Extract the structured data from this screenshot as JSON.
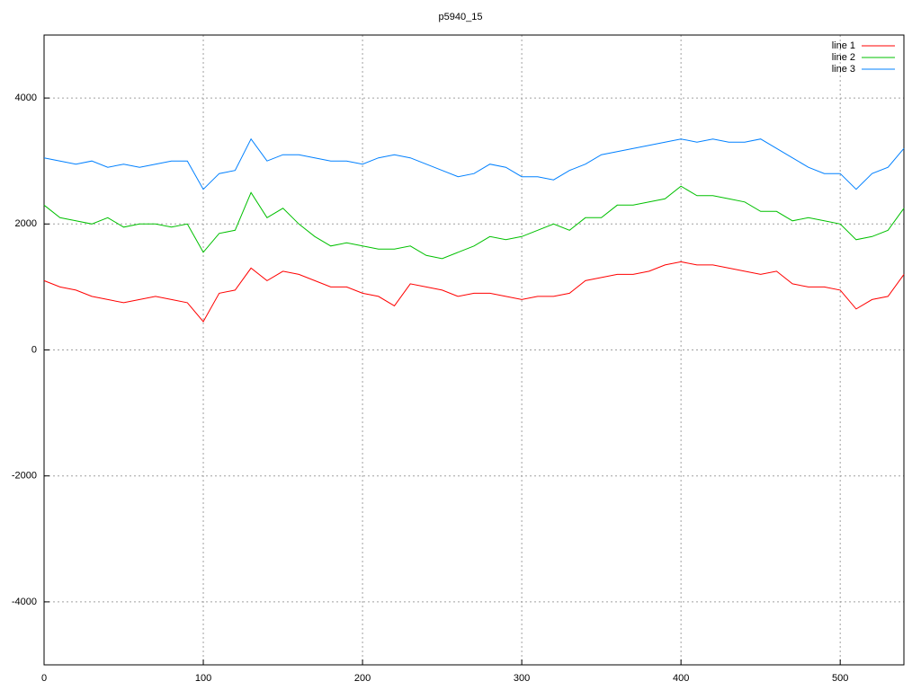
{
  "chart_data": {
    "type": "line",
    "title": "p5940_15",
    "x": [
      0,
      10,
      20,
      30,
      40,
      50,
      60,
      70,
      80,
      90,
      100,
      110,
      120,
      130,
      140,
      150,
      160,
      170,
      180,
      190,
      200,
      210,
      220,
      230,
      240,
      250,
      260,
      270,
      280,
      290,
      300,
      310,
      320,
      330,
      340,
      350,
      360,
      370,
      380,
      390,
      400,
      410,
      420,
      430,
      440,
      450,
      460,
      470,
      480,
      490,
      500,
      510,
      520,
      530,
      540
    ],
    "series": [
      {
        "name": "line 1",
        "color": "#ff0000",
        "values": [
          1100,
          1000,
          950,
          850,
          800,
          750,
          800,
          850,
          800,
          750,
          450,
          900,
          950,
          1300,
          1100,
          1250,
          1200,
          1100,
          1000,
          1000,
          900,
          850,
          700,
          1050,
          1000,
          950,
          850,
          900,
          900,
          850,
          800,
          850,
          850,
          900,
          1100,
          1150,
          1200,
          1200,
          1250,
          1350,
          1400,
          1350,
          1350,
          1300,
          1250,
          1200,
          1250,
          1050,
          1000,
          1000,
          950,
          650,
          800,
          850,
          1200
        ]
      },
      {
        "name": "line 2",
        "color": "#00c000",
        "values": [
          2300,
          2100,
          2050,
          2000,
          2100,
          1950,
          2000,
          2000,
          1950,
          2000,
          1550,
          1850,
          1900,
          2500,
          2100,
          2250,
          2000,
          1800,
          1650,
          1700,
          1650,
          1600,
          1600,
          1650,
          1500,
          1450,
          1550,
          1650,
          1800,
          1750,
          1800,
          1900,
          2000,
          1900,
          2100,
          2100,
          2300,
          2300,
          2350,
          2400,
          2600,
          2450,
          2450,
          2400,
          2350,
          2200,
          2200,
          2050,
          2100,
          2050,
          2000,
          1750,
          1800,
          1900,
          2250
        ]
      },
      {
        "name": "line 3",
        "color": "#0080ff",
        "values": [
          3050,
          3000,
          2950,
          3000,
          2900,
          2950,
          2900,
          2950,
          3000,
          3000,
          2550,
          2800,
          2850,
          3350,
          3000,
          3100,
          3100,
          3050,
          3000,
          3000,
          2950,
          3050,
          3100,
          3050,
          2950,
          2850,
          2750,
          2800,
          2950,
          2900,
          2750,
          2750,
          2700,
          2850,
          2950,
          3100,
          3150,
          3200,
          3250,
          3300,
          3350,
          3300,
          3350,
          3300,
          3300,
          3350,
          3200,
          3050,
          2900,
          2800,
          2800,
          2550,
          2800,
          2900,
          3200
        ]
      }
    ],
    "xlim": [
      0,
      540
    ],
    "ylim": [
      -5000,
      5000
    ],
    "xticks": [
      0,
      100,
      200,
      300,
      400,
      500
    ],
    "yticks": [
      -4000,
      -2000,
      0,
      2000,
      4000
    ],
    "grid": true,
    "legend": "top-right"
  }
}
